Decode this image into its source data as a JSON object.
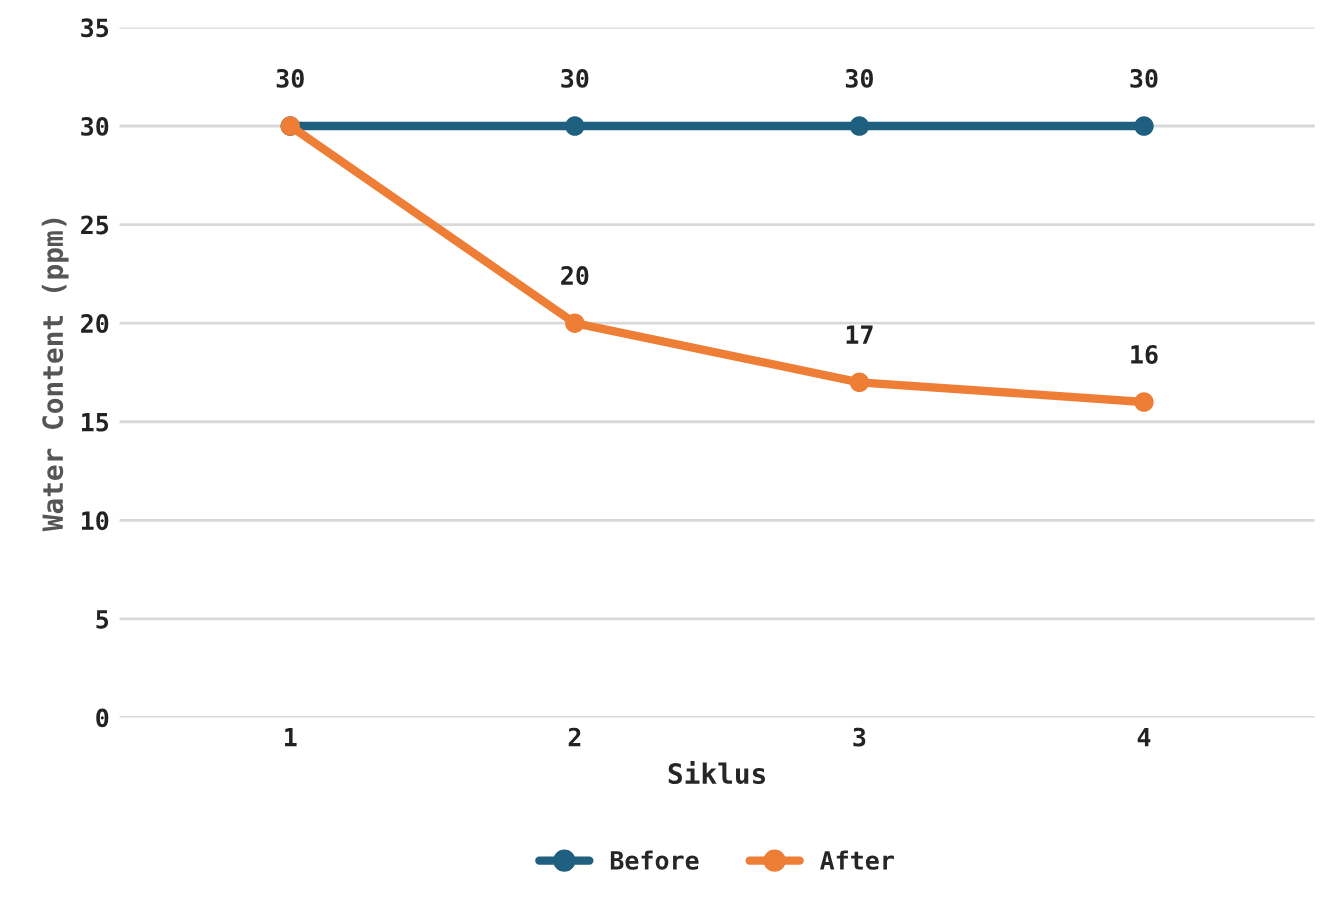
{
  "chart_data": {
    "type": "line",
    "xlabel": "Siklus",
    "ylabel": "Water Content (ppm)",
    "categories": [
      "1",
      "2",
      "3",
      "4"
    ],
    "series": [
      {
        "name": "Before",
        "color": "#1f5f7f",
        "values": [
          30,
          30,
          30,
          30
        ],
        "value_labels": [
          "30",
          "30",
          "30",
          "30"
        ]
      },
      {
        "name": "After",
        "color": "#ee7d36",
        "values": [
          30,
          20,
          17,
          16
        ],
        "value_labels": [
          null,
          "20",
          "17",
          "16"
        ]
      }
    ],
    "ylim": [
      0,
      35
    ],
    "yticks": [
      0,
      5,
      10,
      15,
      20,
      25,
      30,
      35
    ],
    "grid": "y",
    "legend": "bottom",
    "marker": "circle",
    "line_style": "solid"
  }
}
